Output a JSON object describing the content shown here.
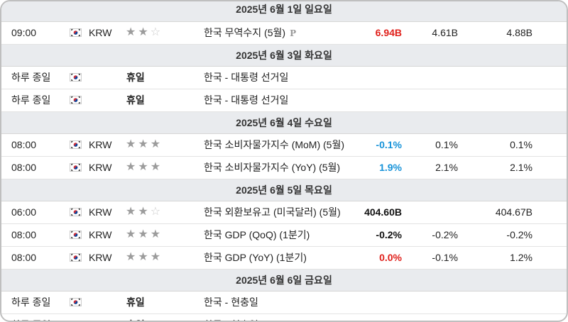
{
  "colors": {
    "red": "#e0201b",
    "blue": "#1793d9",
    "header_bg": "#e9ebee"
  },
  "days": [
    {
      "date": "2025년 6월 1일 일요일",
      "events": [
        {
          "time": "09:00",
          "currency": "KRW",
          "importance": 2,
          "event": "한국 무역수지 (5월)",
          "preliminary": "P",
          "actual": "6.94B",
          "actual_color": "red",
          "forecast": "4.61B",
          "previous": "4.88B"
        }
      ]
    },
    {
      "date": "2025년 6월 3일 화요일",
      "events": [
        {
          "time": "하루 종일",
          "holiday": "휴일",
          "event": "한국 - 대통령 선거일"
        },
        {
          "time": "하루 종일",
          "holiday": "휴일",
          "event": "한국 - 대통령 선거일"
        }
      ]
    },
    {
      "date": "2025년 6월 4일 수요일",
      "events": [
        {
          "time": "08:00",
          "currency": "KRW",
          "importance": 3,
          "event": "한국 소비자물가지수 (MoM) (5월)",
          "actual": "-0.1%",
          "actual_color": "blue",
          "forecast": "0.1%",
          "previous": "0.1%"
        },
        {
          "time": "08:00",
          "currency": "KRW",
          "importance": 3,
          "event": "한국 소비자물가지수 (YoY) (5월)",
          "actual": "1.9%",
          "actual_color": "blue",
          "forecast": "2.1%",
          "previous": "2.1%"
        }
      ]
    },
    {
      "date": "2025년 6월 5일 목요일",
      "events": [
        {
          "time": "06:00",
          "currency": "KRW",
          "importance": 2,
          "event": "한국 외환보유고 (미국달러) (5월)",
          "actual": "404.60B",
          "actual_color": "black",
          "forecast": "",
          "previous": "404.67B"
        },
        {
          "time": "08:00",
          "currency": "KRW",
          "importance": 3,
          "event": "한국 GDP (QoQ) (1분기)",
          "actual": "-0.2%",
          "actual_color": "black",
          "forecast": "-0.2%",
          "previous": "-0.2%"
        },
        {
          "time": "08:00",
          "currency": "KRW",
          "importance": 3,
          "event": "한국 GDP (YoY) (1분기)",
          "actual": "0.0%",
          "actual_color": "red",
          "forecast": "-0.1%",
          "previous": "1.2%"
        }
      ]
    },
    {
      "date": "2025년 6월 6일 금요일",
      "events": [
        {
          "time": "하루 종일",
          "holiday": "휴일",
          "event": "한국 - 현충일"
        },
        {
          "time": "하루 종일",
          "holiday": "휴일",
          "event": "한국 - 현충일"
        }
      ]
    }
  ]
}
